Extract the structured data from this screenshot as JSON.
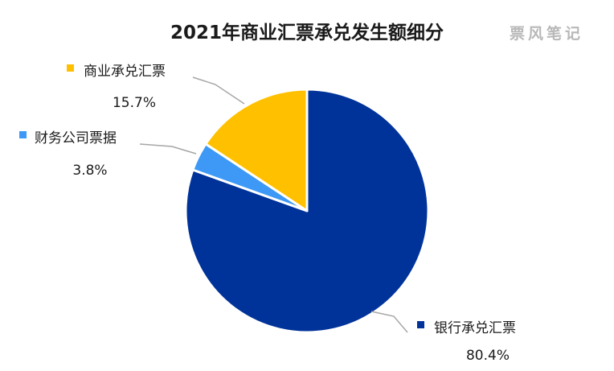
{
  "watermark": "票风笔记",
  "chart_data": {
    "type": "pie",
    "title": "2021年商业汇票承兑发生额细分",
    "slices": [
      {
        "name": "银行承兑汇票",
        "value": 80.4,
        "label": "80.4%",
        "color": "#003399"
      },
      {
        "name": "财务公司票据",
        "value": 3.8,
        "label": "3.8%",
        "color": "#3d99f5"
      },
      {
        "name": "商业承兑汇票",
        "value": 15.7,
        "label": "15.7%",
        "color": "#ffc000"
      }
    ],
    "start_angle": "12 o'clock",
    "direction": "clockwise",
    "legend": "none"
  }
}
